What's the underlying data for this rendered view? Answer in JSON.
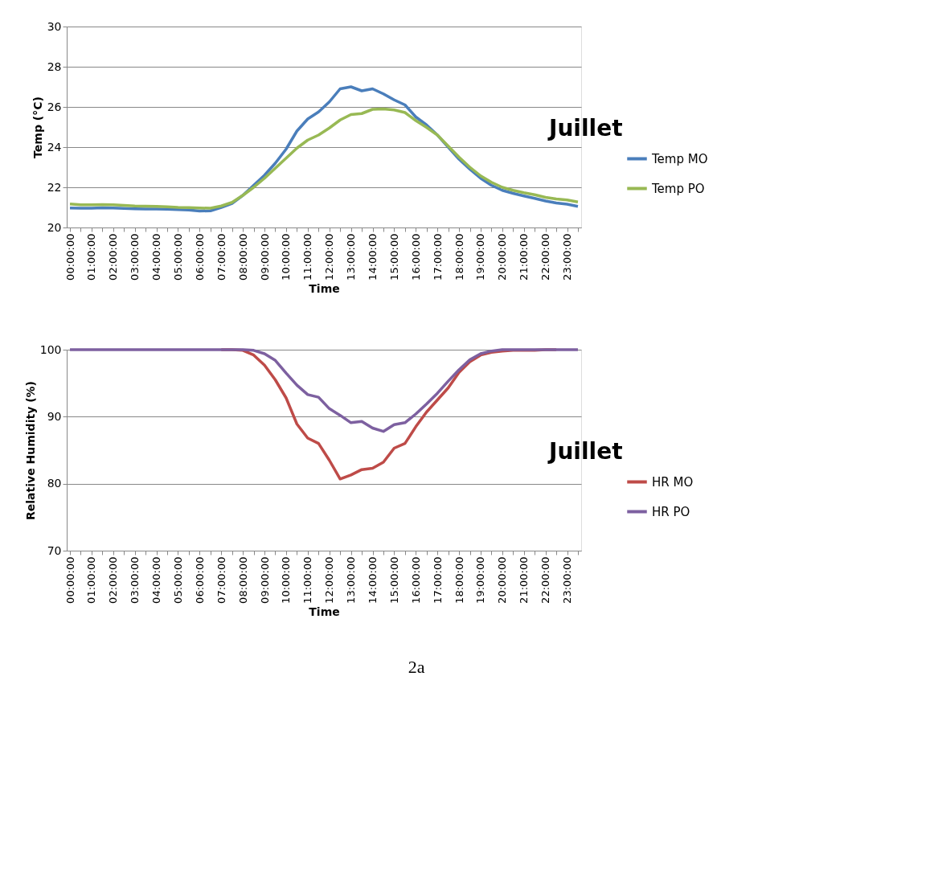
{
  "chart_data": [
    {
      "type": "line",
      "title": "Juillet",
      "xlabel": "Time",
      "ylabel": "Temp (°C)",
      "categories": [
        "00:00:00",
        null,
        "01:00:00",
        null,
        "02:00:00",
        null,
        "03:00:00",
        null,
        "04:00:00",
        null,
        "05:00:00",
        null,
        "06:00:00",
        null,
        "07:00:00",
        null,
        "08:00:00",
        null,
        "09:00:00",
        null,
        "10:00:00",
        null,
        "11:00:00",
        null,
        "12:00:00",
        null,
        "13:00:00",
        null,
        "14:00:00",
        null,
        "15:00:00",
        null,
        "16:00:00",
        null,
        "17:00:00",
        null,
        "18:00:00",
        null,
        "19:00:00",
        null,
        "20:00:00",
        null,
        "21:00:00",
        null,
        "22:00:00",
        null,
        "23:00:00",
        null
      ],
      "series": [
        {
          "name": "Temp MO",
          "color": "#4a7ebb",
          "values": [
            20.97,
            20.96,
            20.96,
            20.98,
            20.97,
            20.95,
            20.93,
            20.92,
            20.92,
            20.91,
            20.89,
            20.87,
            20.82,
            20.83,
            21.0,
            21.2,
            21.6,
            22.1,
            22.6,
            23.2,
            23.9,
            24.8,
            25.4,
            25.75,
            26.25,
            26.9,
            27.0,
            26.8,
            26.9,
            26.65,
            26.35,
            26.1,
            25.5,
            25.1,
            24.6,
            24.0,
            23.4,
            22.9,
            22.45,
            22.1,
            21.85,
            21.7,
            21.57,
            21.45,
            21.32,
            21.22,
            21.16,
            21.05
          ]
        },
        {
          "name": "Temp PO",
          "color": "#98b954",
          "values": [
            21.17,
            21.13,
            21.13,
            21.14,
            21.13,
            21.1,
            21.07,
            21.06,
            21.05,
            21.03,
            21.0,
            20.99,
            20.97,
            20.96,
            21.07,
            21.25,
            21.6,
            22.0,
            22.45,
            22.95,
            23.45,
            23.95,
            24.35,
            24.6,
            24.95,
            25.35,
            25.62,
            25.67,
            25.88,
            25.9,
            25.85,
            25.72,
            25.32,
            24.98,
            24.6,
            24.05,
            23.5,
            23.0,
            22.57,
            22.25,
            22.0,
            21.85,
            21.73,
            21.63,
            21.5,
            21.42,
            21.37,
            21.27
          ]
        }
      ],
      "ylim": [
        20,
        30
      ],
      "yticks": [
        20,
        22,
        24,
        26,
        28,
        30
      ],
      "grid": "y",
      "legend": "right",
      "marker": "none",
      "line_style": "solid"
    },
    {
      "type": "line",
      "title": "Juillet",
      "xlabel": "Time",
      "ylabel": "Relative Humidity (%)",
      "categories": [
        "00:00:00",
        null,
        "01:00:00",
        null,
        "02:00:00",
        null,
        "03:00:00",
        null,
        "04:00:00",
        null,
        "05:00:00",
        null,
        "06:00:00",
        null,
        "07:00:00",
        null,
        "08:00:00",
        null,
        "09:00:00",
        null,
        "10:00:00",
        null,
        "11:00:00",
        null,
        "12:00:00",
        null,
        "13:00:00",
        null,
        "14:00:00",
        null,
        "15:00:00",
        null,
        "16:00:00",
        null,
        "17:00:00",
        null,
        "18:00:00",
        null,
        "19:00:00",
        null,
        "20:00:00",
        null,
        "21:00:00",
        null,
        "22:00:00",
        null,
        "23:00:00",
        null
      ],
      "series": [
        {
          "name": "HR MO",
          "color": "#be4b48",
          "values": [
            null,
            null,
            null,
            null,
            null,
            null,
            null,
            null,
            null,
            null,
            null,
            null,
            null,
            null,
            100,
            100,
            99.9,
            99.2,
            97.7,
            95.5,
            92.8,
            88.9,
            86.8,
            86.0,
            83.5,
            80.7,
            81.3,
            82.1,
            82.3,
            83.2,
            85.3,
            86.0,
            88.5,
            90.7,
            92.5,
            94.3,
            96.6,
            98.2,
            99.2,
            99.6,
            99.8,
            99.9,
            99.9,
            99.9,
            100,
            100,
            null,
            null
          ]
        },
        {
          "name": "HR PO",
          "color": "#7d60a0",
          "values": [
            100,
            100,
            100,
            100,
            100,
            100,
            100,
            100,
            100,
            100,
            100,
            100,
            100,
            100,
            100,
            100,
            100,
            99.9,
            99.4,
            98.4,
            96.5,
            94.7,
            93.3,
            92.9,
            91.2,
            90.2,
            89.1,
            89.3,
            88.3,
            87.8,
            88.8,
            89.1,
            90.4,
            91.9,
            93.5,
            95.3,
            97.0,
            98.5,
            99.4,
            99.8,
            100,
            100,
            100,
            100,
            100,
            100,
            100,
            100
          ]
        }
      ],
      "ylim": [
        70,
        100
      ],
      "yticks": [
        70,
        80,
        90,
        100
      ],
      "grid": "y",
      "legend": "right",
      "marker": "none",
      "line_style": "solid",
      "annotations": [
        "2a"
      ]
    }
  ]
}
